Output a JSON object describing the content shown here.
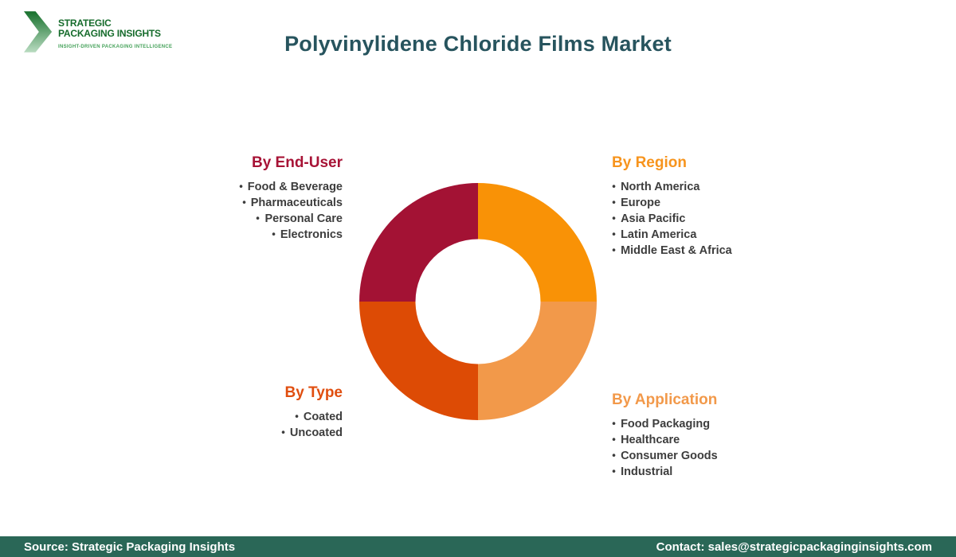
{
  "logo": {
    "line1": "STRATEGIC",
    "line2": "PACKAGING INSIGHTS",
    "tagline": "INSIGHT-DRIVEN PACKAGING INTELLIGENCE",
    "text_color": "#156B2B",
    "tagline_color": "#44A159",
    "chevron_dark": "#17702C",
    "chevron_light": "#B9DCC1"
  },
  "title": {
    "text": "Polyvinylidene Chloride Films Market",
    "color": "#27545E"
  },
  "groups": {
    "end_user": {
      "heading": "By End-User",
      "color": "#A71336",
      "items": [
        "Food & Beverage",
        "Pharmaceuticals",
        "Personal Care",
        "Electronics"
      ]
    },
    "region": {
      "heading": "By Region",
      "color": "#F7941D",
      "items": [
        "North America",
        "Europe",
        "Asia Pacific",
        "Latin America",
        "Middle East & Africa"
      ]
    },
    "type": {
      "heading": "By Type",
      "color": "#E04E0F",
      "items": [
        "Coated",
        "Uncoated"
      ]
    },
    "application": {
      "heading": "By Application",
      "color": "#F2994A",
      "items": [
        "Food Packaging",
        "Healthcare",
        "Consumer Goods",
        "Industrial"
      ]
    }
  },
  "chart_data": {
    "type": "pie",
    "subtype": "donut",
    "title": "Polyvinylidene Chloride Films Market segmentation",
    "legend_position": "corner-labels",
    "inner_radius_ratio": 0.525,
    "start_angle_deg": 0,
    "segments": [
      {
        "label": "By Region",
        "value": 25,
        "color": "#F99206",
        "position": "top-right"
      },
      {
        "label": "By Application",
        "value": 25,
        "color": "#F2994A",
        "position": "bottom-right"
      },
      {
        "label": "By Type",
        "value": 25,
        "color": "#DD4B05",
        "position": "bottom-left"
      },
      {
        "label": "By End-User",
        "value": 25,
        "color": "#A31234",
        "position": "top-left"
      }
    ]
  },
  "footer": {
    "source": "Source: Strategic Packaging Insights",
    "contact": "Contact: sales@strategicpackaginginsights.com",
    "bg": "#2A6757",
    "text_color": "#FFFFFF"
  }
}
